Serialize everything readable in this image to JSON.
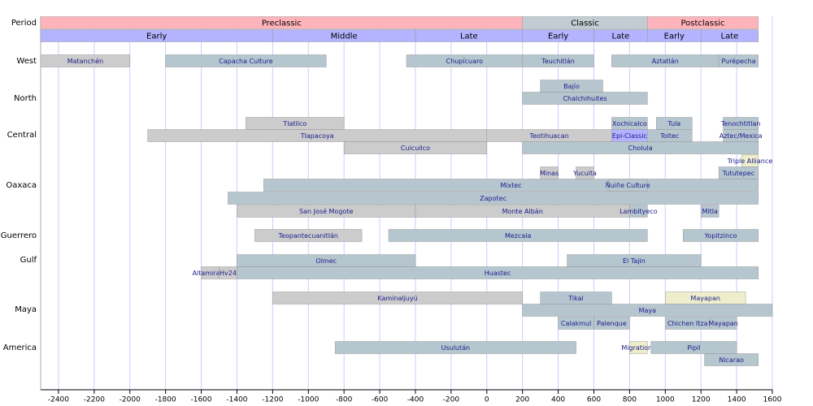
{
  "chart_data": {
    "type": "timeline",
    "xlim": [
      -2500,
      1600
    ],
    "xticks": [
      -2400,
      -2200,
      -2000,
      -1800,
      -1600,
      -1400,
      -1200,
      -1000,
      -800,
      -600,
      -400,
      -200,
      0,
      200,
      400,
      600,
      800,
      1000,
      1200,
      1400,
      1600
    ],
    "period_label": "Period",
    "periods": [
      {
        "label": "Preclassic",
        "start": -2500,
        "end": 200,
        "color": "#ffb3ba"
      },
      {
        "label": "Classic",
        "start": 200,
        "end": 900,
        "color": "#c2ccd2"
      },
      {
        "label": "Postclassic",
        "start": 900,
        "end": 1521,
        "color": "#ffb3ba"
      }
    ],
    "subperiods": [
      {
        "label": "Early",
        "start": -2500,
        "end": -1200,
        "color": "#b3b3ff"
      },
      {
        "label": "Middle",
        "start": -1200,
        "end": -400,
        "color": "#b3b3ff"
      },
      {
        "label": "Late",
        "start": -400,
        "end": 200,
        "color": "#b3b3ff"
      },
      {
        "label": "Early",
        "start": 200,
        "end": 600,
        "color": "#b3b3ff"
      },
      {
        "label": "Late",
        "start": 600,
        "end": 900,
        "color": "#b3b3ff"
      },
      {
        "label": "Early",
        "start": 900,
        "end": 1200,
        "color": "#b3b3ff"
      },
      {
        "label": "Late",
        "start": 1200,
        "end": 1521,
        "color": "#b3b3ff"
      }
    ],
    "rows": [
      {
        "name": "West",
        "lanes": [
          [
            {
              "label": "Matanchén",
              "start": -2500,
              "end": -2000,
              "color": "#cccccc"
            },
            {
              "label": "Capacha Culture",
              "start": -1800,
              "end": -900,
              "color": "#b6c6cf"
            },
            {
              "label": "Chupícuaro",
              "start": -450,
              "end": 200,
              "color": "#b6c6cf"
            },
            {
              "label": "Teuchitlán",
              "start": 200,
              "end": 600,
              "color": "#b6c6cf"
            },
            {
              "label": "Aztatlán",
              "start": 700,
              "end": 1300,
              "color": "#b6c6cf"
            },
            {
              "label": "Purépecha",
              "start": 1300,
              "end": 1521,
              "color": "#b6c6cf"
            }
          ]
        ]
      },
      {
        "name": "North",
        "lanes": [
          [
            {
              "label": "Bajío",
              "start": 300,
              "end": 650,
              "color": "#b6c6cf"
            }
          ],
          [
            {
              "label": "Chalchihuites",
              "start": 200,
              "end": 900,
              "color": "#b6c6cf"
            }
          ]
        ]
      },
      {
        "name": "Central",
        "lanes": [
          [
            {
              "label": "Tlatilco",
              "start": -1350,
              "end": -800,
              "color": "#cccccc"
            },
            {
              "label": "Xochicalco",
              "start": 700,
              "end": 900,
              "color": "#b6c6cf"
            },
            {
              "label": "Tula",
              "start": 950,
              "end": 1150,
              "color": "#b6c6cf"
            },
            {
              "label": "Tenochtitlan",
              "start": 1325,
              "end": 1521,
              "color": "#b6c6cf"
            }
          ],
          [
            {
              "label": "Tlapacoya",
              "start": -1900,
              "end": 0,
              "color": "#cccccc"
            },
            {
              "label": "Teotihuacan",
              "start": 0,
              "end": 700,
              "color": "#cccccc"
            },
            {
              "label": "Epi-Classic",
              "start": 700,
              "end": 900,
              "color": "#b3b3ff"
            },
            {
              "label": "Toltec",
              "start": 900,
              "end": 1150,
              "color": "#b6c6cf"
            },
            {
              "label": "Aztec/Mexica",
              "start": 1325,
              "end": 1521,
              "color": "#b6c6cf"
            }
          ],
          [
            {
              "label": "Cuicuilco",
              "start": -800,
              "end": 0,
              "color": "#cccccc"
            },
            {
              "label": "Cholula",
              "start": 200,
              "end": 1521,
              "color": "#b6c6cf"
            }
          ],
          [
            {
              "label": "Triple Alliance",
              "start": 1428,
              "end": 1521,
              "color": "#eeeecc"
            }
          ]
        ]
      },
      {
        "name": "Oaxaca",
        "lanes": [
          [
            {
              "label": "Minas",
              "start": 300,
              "end": 400,
              "color": "#cccccc"
            },
            {
              "label": "Yucuita",
              "start": 500,
              "end": 600,
              "color": "#cccccc"
            },
            {
              "label": "Tututepec",
              "start": 1300,
              "end": 1521,
              "color": "#b6c6cf"
            }
          ],
          [
            {
              "label": "Mixtec",
              "start": -1250,
              "end": 1521,
              "color": "#b6c6cf"
            },
            {
              "label": "Ñuiñe Culture",
              "start": 680,
              "end": 900,
              "color": "#b6c6cf"
            }
          ],
          [
            {
              "label": "Zapotec",
              "start": -1450,
              "end": 1521,
              "color": "#b6c6cf"
            }
          ],
          [
            {
              "label": "San José Mogote",
              "start": -1400,
              "end": -400,
              "color": "#cccccc"
            },
            {
              "label": "Monte Albán",
              "start": -400,
              "end": 800,
              "color": "#cccccc"
            },
            {
              "label": "Lambityeco",
              "start": 800,
              "end": 900,
              "color": "#b6c6cf"
            },
            {
              "label": "Mitla",
              "start": 1200,
              "end": 1300,
              "color": "#b6c6cf"
            }
          ]
        ]
      },
      {
        "name": "Guerrero",
        "lanes": [
          [
            {
              "label": "Teopantecuanitlán",
              "start": -1300,
              "end": -700,
              "color": "#cccccc"
            },
            {
              "label": "Mezcala",
              "start": -550,
              "end": 900,
              "color": "#b6c6cf"
            },
            {
              "label": "Yopitzinco",
              "start": 1100,
              "end": 1521,
              "color": "#b6c6cf"
            }
          ]
        ]
      },
      {
        "name": "Gulf",
        "lanes": [
          [
            {
              "label": "Olmec",
              "start": -1400,
              "end": -400,
              "color": "#b6c6cf"
            },
            {
              "label": "El Tajin",
              "start": 450,
              "end": 1200,
              "color": "#b6c6cf"
            }
          ],
          [
            {
              "label": "Altamirano",
              "start": -1600,
              "end": -1500,
              "color": "#cccccc"
            },
            {
              "label": "Hv24",
              "start": -1500,
              "end": -1400,
              "color": "#cccccc"
            },
            {
              "label": "Huastec",
              "start": -1400,
              "end": 1521,
              "color": "#b6c6cf"
            }
          ]
        ]
      },
      {
        "name": "Maya",
        "lanes": [
          [
            {
              "label": "Kaminaljuyú",
              "start": -1200,
              "end": 200,
              "color": "#cccccc"
            },
            {
              "label": "Tikal",
              "start": 300,
              "end": 700,
              "color": "#b6c6cf"
            },
            {
              "label": "Mayapan",
              "start": 1000,
              "end": 1450,
              "color": "#eeeecc"
            }
          ],
          [
            {
              "label": "Maya",
              "start": 200,
              "end": 1600,
              "color": "#b6c6cf"
            }
          ],
          [
            {
              "label": "Calakmul",
              "start": 400,
              "end": 600,
              "color": "#b6c6cf"
            },
            {
              "label": "Palenque",
              "start": 600,
              "end": 800,
              "color": "#b6c6cf"
            },
            {
              "label": "Chichen Itza",
              "start": 1000,
              "end": 1250,
              "color": "#b6c6cf"
            },
            {
              "label": "Mayapan",
              "start": 1250,
              "end": 1400,
              "color": "#b6c6cf"
            }
          ]
        ]
      },
      {
        "name": "Central America",
        "lanes": [
          [
            {
              "label": "Usulután",
              "start": -850,
              "end": 500,
              "color": "#b6c6cf"
            },
            {
              "label": "Migrations",
              "start": 800,
              "end": 900,
              "color": "#eeeecc"
            },
            {
              "label": "Pipil",
              "start": 920,
              "end": 1400,
              "color": "#b6c6cf"
            }
          ],
          [
            {
              "label": "Nicarao",
              "start": 1220,
              "end": 1521,
              "color": "#b6c6cf"
            }
          ]
        ]
      }
    ]
  }
}
